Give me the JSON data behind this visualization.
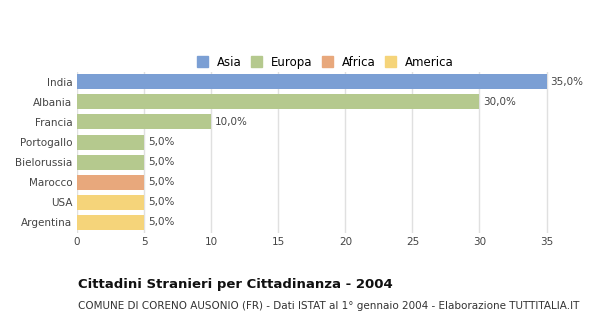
{
  "categories": [
    "India",
    "Albania",
    "Francia",
    "Portogallo",
    "Bielorussia",
    "Marocco",
    "USA",
    "Argentina"
  ],
  "values": [
    35.0,
    30.0,
    10.0,
    5.0,
    5.0,
    5.0,
    5.0,
    5.0
  ],
  "colors": [
    "#7b9fd4",
    "#b5c98e",
    "#b5c98e",
    "#b5c98e",
    "#b5c98e",
    "#e8a87c",
    "#f5d47a",
    "#f5d47a"
  ],
  "labels": [
    "35,0%",
    "30,0%",
    "10,0%",
    "5,0%",
    "5,0%",
    "5,0%",
    "5,0%",
    "5,0%"
  ],
  "legend": [
    {
      "label": "Asia",
      "color": "#7b9fd4"
    },
    {
      "label": "Europa",
      "color": "#b5c98e"
    },
    {
      "label": "Africa",
      "color": "#e8a87c"
    },
    {
      "label": "America",
      "color": "#f5d47a"
    }
  ],
  "xlim": [
    0,
    37
  ],
  "xticks": [
    0,
    5,
    10,
    15,
    20,
    25,
    30,
    35
  ],
  "title": "Cittadini Stranieri per Cittadinanza - 2004",
  "subtitle": "COMUNE DI CORENO AUSONIO (FR) - Dati ISTAT al 1° gennaio 2004 - Elaborazione TUTTITALIA.IT",
  "background_color": "#ffffff",
  "plot_bg_color": "#ffffff",
  "grid_color": "#e0e0e0",
  "title_fontsize": 9.5,
  "subtitle_fontsize": 7.5,
  "label_fontsize": 7.5,
  "tick_fontsize": 7.5,
  "legend_fontsize": 8.5,
  "bar_height": 0.75
}
